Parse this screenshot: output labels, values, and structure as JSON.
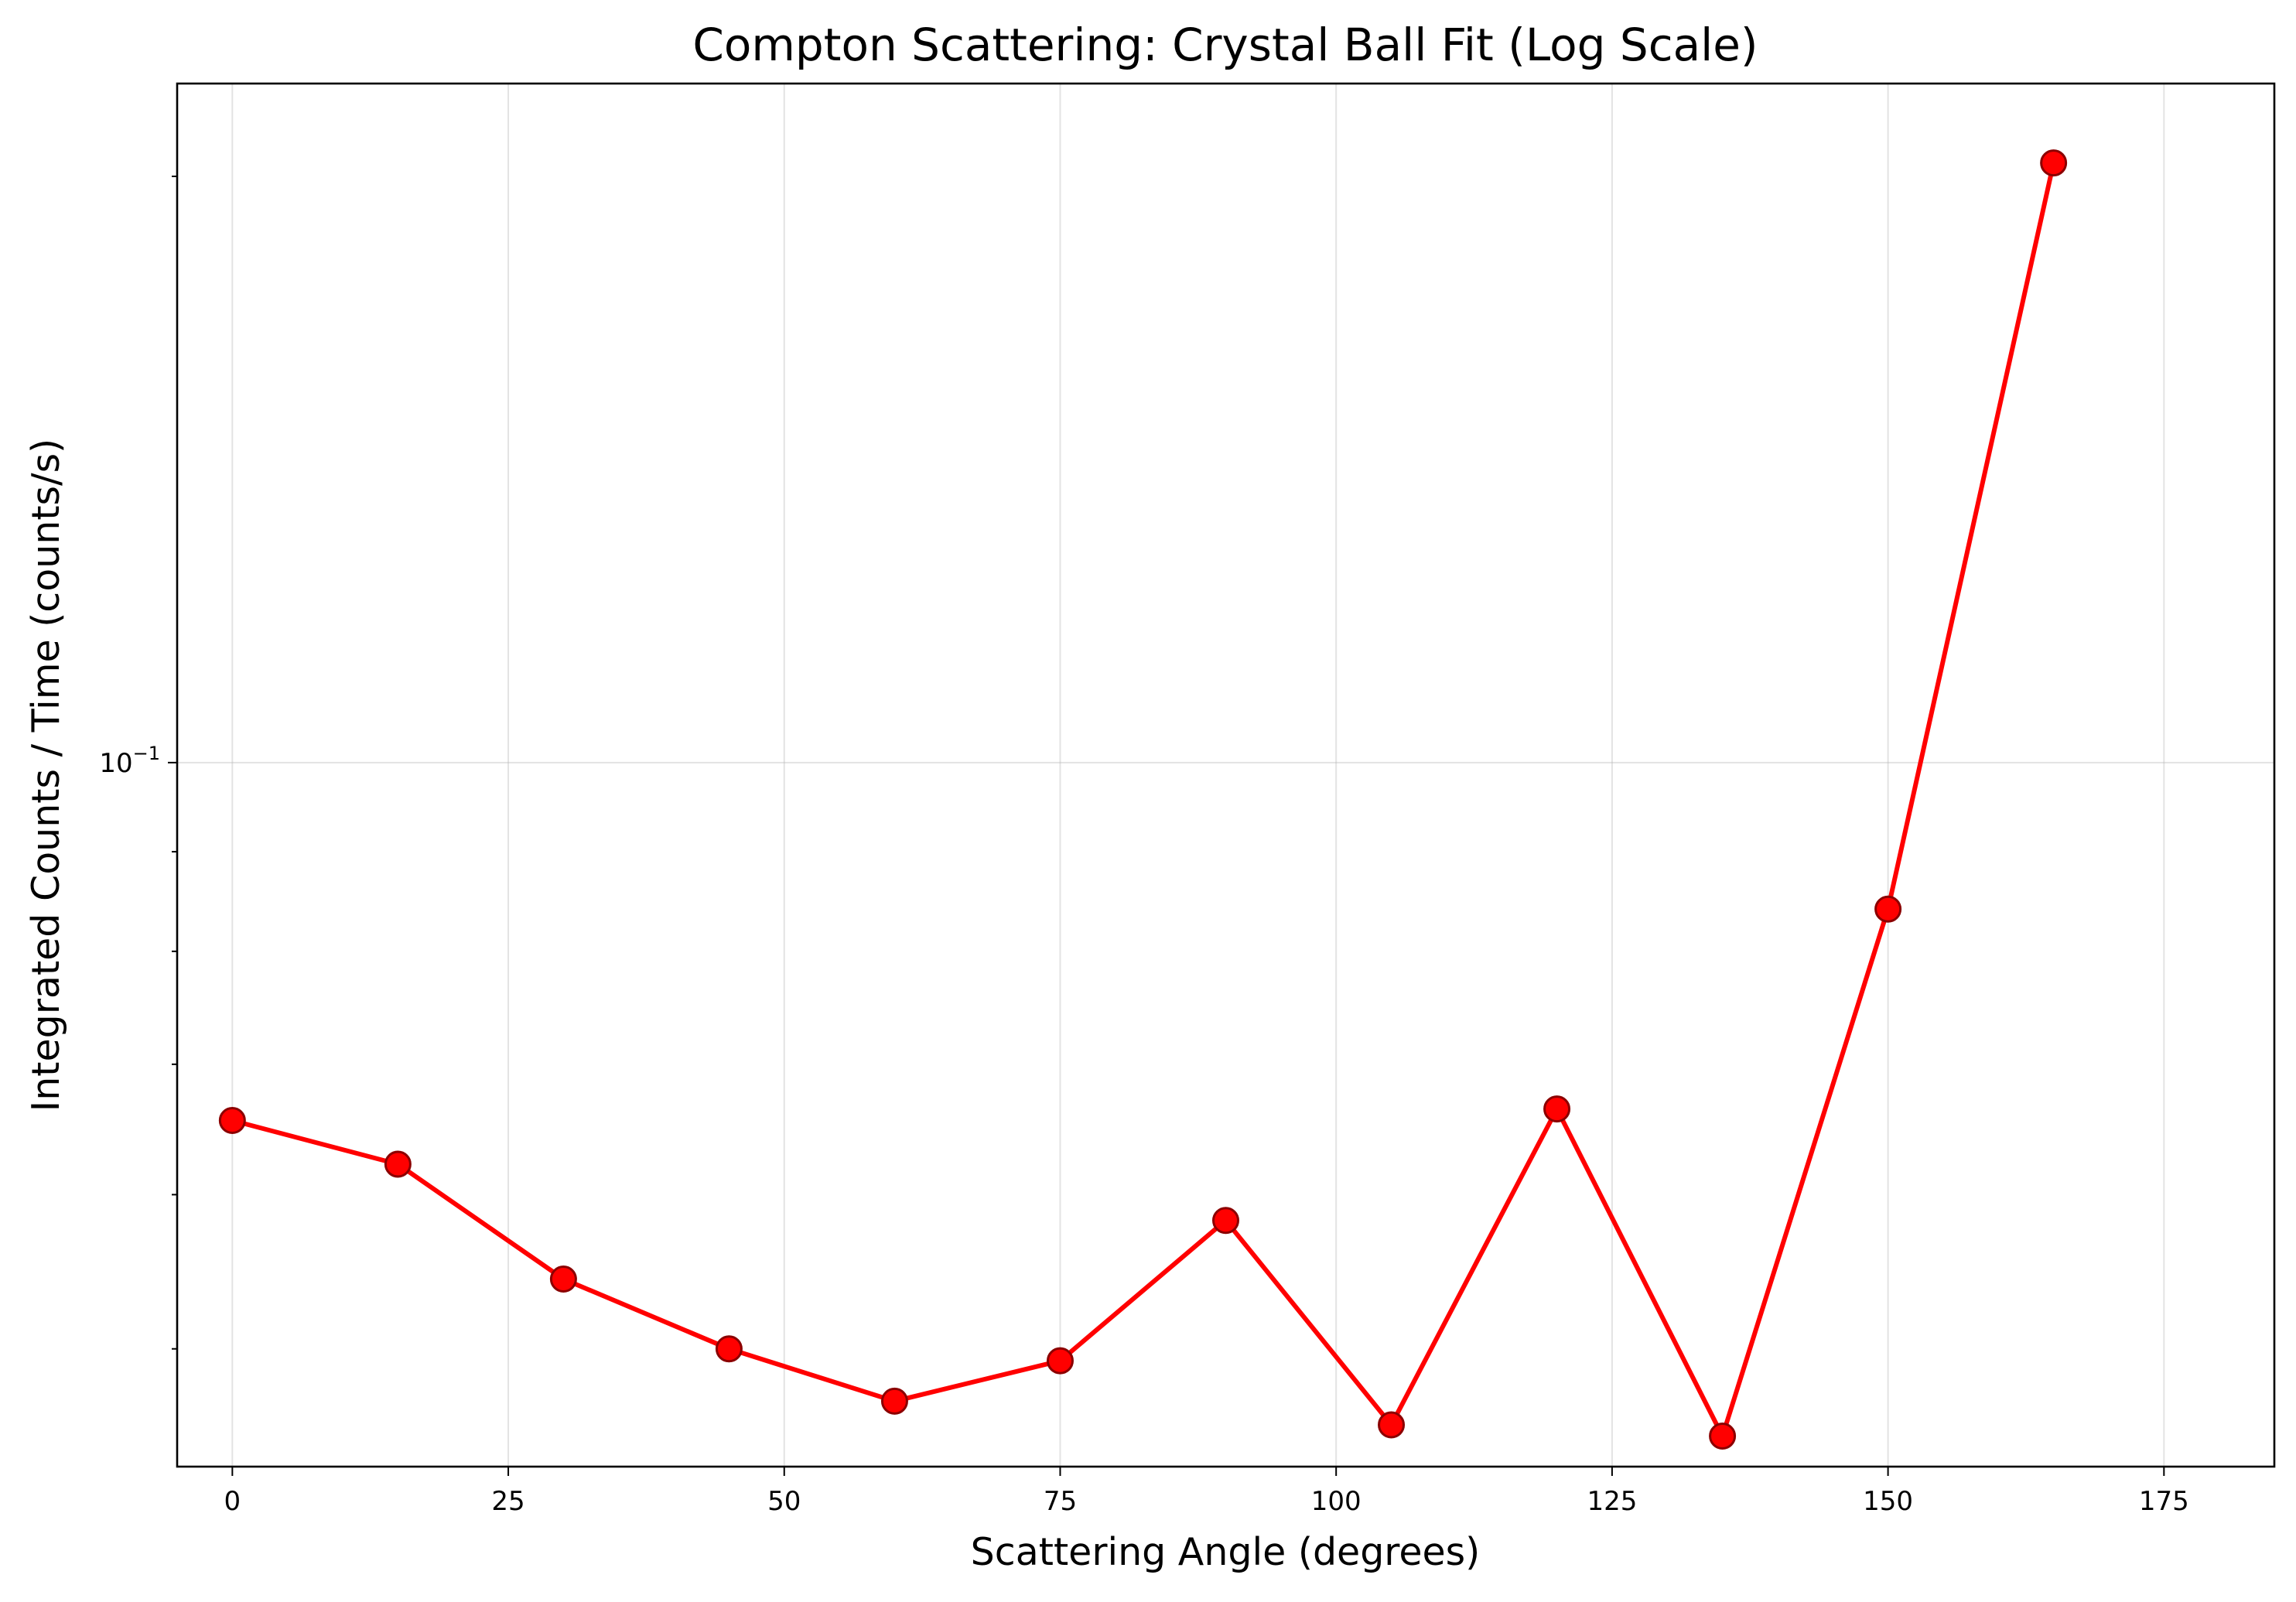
{
  "chart_data": {
    "type": "line",
    "title": "Compton Scattering: Crystal Ball Fit (Log Scale)",
    "xlabel": "Scattering Angle (degrees)",
    "ylabel": "Integrated Counts / Time (counts/s)",
    "xscale": "linear",
    "yscale": "log",
    "xlim": [
      -5,
      185
    ],
    "ylim": [
      0.0435,
      0.2232
    ],
    "xticks": [
      0,
      25,
      50,
      75,
      100,
      125,
      150,
      175
    ],
    "xtick_labels": [
      "0",
      "25",
      "50",
      "75",
      "100",
      "125",
      "150",
      "175"
    ],
    "yticks_major": [
      0.1
    ],
    "ytick_labels": [
      "10^{-1}"
    ],
    "yticks_minor": [
      0.05,
      0.06,
      0.07,
      0.08,
      0.09,
      0.2
    ],
    "grid": true,
    "legend": "none",
    "series": [
      {
        "color": "#ff0000",
        "marker": "circle",
        "marker_edge_color": "#8b0000",
        "x": [
          0,
          15,
          30,
          45,
          60,
          75,
          90,
          105,
          120,
          135,
          150,
          165
        ],
        "y": [
          0.0655,
          0.0622,
          0.0543,
          0.05,
          0.047,
          0.0493,
          0.0582,
          0.0457,
          0.0664,
          0.0451,
          0.0841,
          0.2032
        ]
      }
    ]
  }
}
